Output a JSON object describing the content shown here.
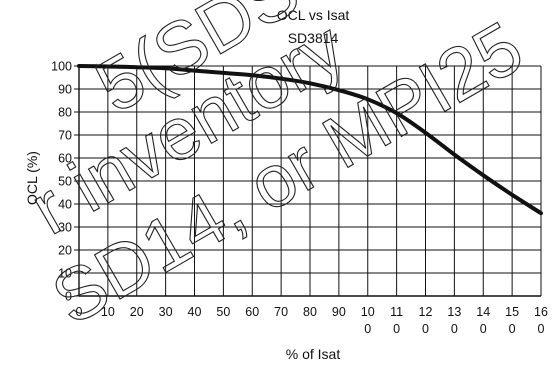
{
  "chart_data": {
    "type": "line",
    "title": "OCL vs Isat",
    "subtitle": "SD3814",
    "xlabel": "% of Isat",
    "ylabel": "OCL (%)",
    "xlim": [
      0,
      160
    ],
    "ylim": [
      0,
      100
    ],
    "grid": true,
    "x_ticks": [
      [
        "0"
      ],
      [
        "10"
      ],
      [
        "20"
      ],
      [
        "30"
      ],
      [
        "40"
      ],
      [
        "50"
      ],
      [
        "60"
      ],
      [
        "70"
      ],
      [
        "80"
      ],
      [
        "90"
      ],
      [
        "10",
        "0"
      ],
      [
        "11",
        "0"
      ],
      [
        "12",
        "0"
      ],
      [
        "13",
        "0"
      ],
      [
        "14",
        "0"
      ],
      [
        "15",
        "0"
      ],
      [
        "16",
        "0"
      ]
    ],
    "y_ticks": [
      "0",
      "10",
      "20",
      "30",
      "40",
      "50",
      "60",
      "70",
      "80",
      "90",
      "100"
    ],
    "series": [
      {
        "x": [
          0,
          10,
          20,
          30,
          40,
          50,
          60,
          70,
          80,
          90,
          100,
          110,
          120,
          130,
          140,
          150,
          160
        ],
        "y": [
          100,
          99.8,
          99.5,
          99,
          98,
          97,
          96,
          94.5,
          92.5,
          89.5,
          85.5,
          79.5,
          71,
          61.5,
          52.5,
          44,
          36
        ]
      }
    ],
    "color": "#111111"
  },
  "watermark": {
    "lines": [
      "5(SDS",
      "r inventory",
      "SD14, or MPI25"
    ]
  }
}
